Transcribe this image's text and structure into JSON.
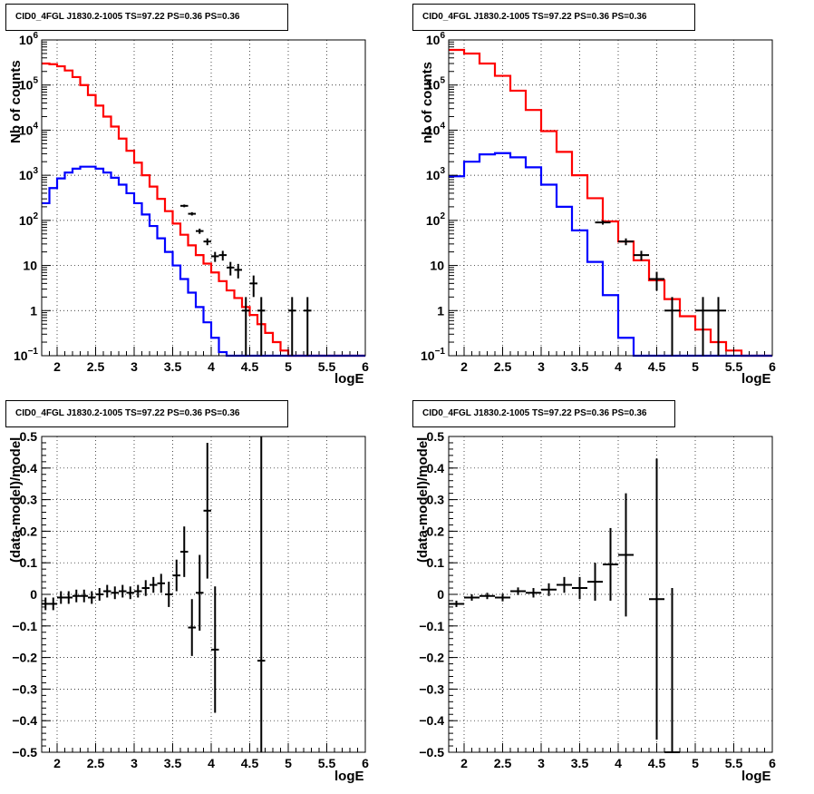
{
  "chart_data": [
    {
      "type": "line",
      "title": "CID0_4FGL J1830.2-1005 TS=97.22 PS=0.36 PS=0.36",
      "xlabel": "logE",
      "ylabel": "Nb of counts",
      "yscale": "log",
      "xlim": [
        1.8,
        6
      ],
      "ylim": [
        0.1,
        1000000
      ],
      "x_ticks": [
        "2",
        "2.5",
        "3",
        "3.5",
        "4",
        "4.5",
        "5",
        "5.5",
        "6"
      ],
      "y_ticks": [
        "10^-1",
        "1",
        "10",
        "10^2",
        "10^3",
        "10^4",
        "10^5",
        "10^6"
      ],
      "grid": true,
      "bin_edges": [
        1.8,
        1.9,
        2.0,
        2.1,
        2.2,
        2.3,
        2.4,
        2.5,
        2.6,
        2.7,
        2.8,
        2.9,
        3.0,
        3.1,
        3.2,
        3.3,
        3.4,
        3.5,
        3.6,
        3.7,
        3.8,
        3.9,
        4.0,
        4.1,
        4.2,
        4.3,
        4.4,
        4.5,
        4.6,
        4.7,
        4.8,
        4.9,
        5.0,
        5.1,
        5.2,
        5.3,
        5.4,
        5.5,
        5.6,
        5.7,
        5.8,
        5.9,
        6.0
      ],
      "series": [
        {
          "color": "#ff0000",
          "style": "histogram",
          "values": [
            300000,
            290000,
            260000,
            210000,
            150000,
            100000,
            60000,
            35000,
            20000,
            12000,
            6500,
            3500,
            1900,
            1000,
            560,
            300,
            160,
            85,
            48,
            28,
            17,
            11,
            7,
            4.5,
            2.8,
            1.9,
            1.2,
            0.8,
            0.5,
            0.32,
            0.2,
            0.13,
            0.1,
            0.1,
            0.1,
            0.1,
            0.1,
            0.1,
            0.1,
            0.1,
            0.1,
            0.1
          ]
        },
        {
          "color": "#0000ff",
          "style": "histogram",
          "values": [
            240,
            520,
            850,
            1150,
            1400,
            1550,
            1550,
            1400,
            1150,
            880,
            620,
            400,
            240,
            135,
            75,
            40,
            20,
            10,
            5,
            2.5,
            1.2,
            0.55,
            0.25,
            0.12,
            0.1,
            0.1,
            0.1,
            0.1,
            0.1,
            0.1,
            0.1,
            0.1,
            0.1,
            0.1,
            0.1,
            0.1,
            0.1,
            0.1,
            0.1,
            0.1,
            0.1,
            0.1
          ]
        },
        {
          "color": "#000000",
          "style": "points",
          "points": [
            {
              "x": 3.65,
              "y": 210,
              "xerr": 0.05
            },
            {
              "x": 3.75,
              "y": 140,
              "xerr": 0.05
            },
            {
              "x": 3.85,
              "y": 58,
              "xerr": 0.05
            },
            {
              "x": 3.95,
              "y": 34,
              "xerr": 0.05
            },
            {
              "x": 4.05,
              "y": 16,
              "xerr": 0.05
            },
            {
              "x": 4.15,
              "y": 17,
              "xerr": 0.05
            },
            {
              "x": 4.25,
              "y": 9,
              "xerr": 0.05
            },
            {
              "x": 4.35,
              "y": 8,
              "xerr": 0.05
            },
            {
              "x": 4.45,
              "y": 1,
              "xerr": 0.05
            },
            {
              "x": 4.55,
              "y": 4,
              "xerr": 0.05
            },
            {
              "x": 4.65,
              "y": 1,
              "xerr": 0.05
            },
            {
              "x": 5.05,
              "y": 1,
              "xerr": 0.05
            },
            {
              "x": 5.25,
              "y": 1,
              "xerr": 0.05
            }
          ]
        }
      ]
    },
    {
      "type": "line",
      "title": "CID0_4FGL J1830.2-1005 TS=97.22 PS=0.36 PS=0.36",
      "xlabel": "logE",
      "ylabel": "nb of counts",
      "yscale": "log",
      "xlim": [
        1.8,
        6
      ],
      "ylim": [
        0.1,
        1000000
      ],
      "x_ticks": [
        "2",
        "2.5",
        "3",
        "3.5",
        "4",
        "4.5",
        "5",
        "5.5",
        "6"
      ],
      "y_ticks": [
        "10^-1",
        "1",
        "10",
        "10^2",
        "10^3",
        "10^4",
        "10^5",
        "10^6"
      ],
      "grid": true,
      "bin_edges": [
        1.8,
        2.0,
        2.2,
        2.4,
        2.6,
        2.8,
        3.0,
        3.2,
        3.4,
        3.6,
        3.8,
        4.0,
        4.2,
        4.4,
        4.6,
        4.8,
        5.0,
        5.2,
        5.4,
        5.6,
        5.8,
        6.0
      ],
      "series": [
        {
          "color": "#ff0000",
          "style": "histogram",
          "values": [
            600000,
            500000,
            300000,
            160000,
            75000,
            28000,
            9500,
            3300,
            1000,
            310,
            95,
            34,
            13,
            4.7,
            1.8,
            0.75,
            0.38,
            0.2,
            0.13,
            0.1,
            0.1
          ]
        },
        {
          "color": "#0000ff",
          "style": "histogram",
          "values": [
            950,
            2000,
            2900,
            3100,
            2500,
            1500,
            620,
            200,
            60,
            12,
            2.2,
            0.25,
            0.1,
            0.1,
            0.1,
            0.1,
            0.1,
            0.1,
            0.1,
            0.1,
            0.1
          ]
        },
        {
          "color": "#000000",
          "style": "points",
          "points": [
            {
              "x": 3.8,
              "y": 90,
              "xerr": 0.1
            },
            {
              "x": 4.1,
              "y": 34,
              "xerr": 0.1
            },
            {
              "x": 4.3,
              "y": 17,
              "xerr": 0.1
            },
            {
              "x": 4.5,
              "y": 5,
              "xerr": 0.1
            },
            {
              "x": 4.7,
              "y": 1,
              "xerr": 0.1
            },
            {
              "x": 5.1,
              "y": 1,
              "xerr": 0.1
            },
            {
              "x": 5.3,
              "y": 1,
              "xerr": 0.1
            }
          ]
        }
      ]
    },
    {
      "type": "scatter",
      "title": "CID0_4FGL J1830.2-1005 TS=97.22 PS=0.36 PS=0.36",
      "xlabel": "logE",
      "ylabel": "(data-model)/model",
      "xlim": [
        1.8,
        6
      ],
      "ylim": [
        -0.5,
        0.5
      ],
      "x_ticks": [
        "2",
        "2.5",
        "3",
        "3.5",
        "4",
        "4.5",
        "5",
        "5.5",
        "6"
      ],
      "y_ticks": [
        "-0.5",
        "-0.4",
        "-0.3",
        "-0.2",
        "-0.1",
        "0",
        "0.1",
        "0.2",
        "0.3",
        "0.4",
        "0.5"
      ],
      "grid": true,
      "series": [
        {
          "color": "#000000",
          "style": "points",
          "points": [
            {
              "x": 1.85,
              "y": -0.03,
              "xerr": 0.05,
              "yerr": 0.02
            },
            {
              "x": 1.95,
              "y": -0.03,
              "xerr": 0.05,
              "yerr": 0.02
            },
            {
              "x": 2.05,
              "y": -0.01,
              "xerr": 0.05,
              "yerr": 0.02
            },
            {
              "x": 2.15,
              "y": -0.01,
              "xerr": 0.05,
              "yerr": 0.02
            },
            {
              "x": 2.25,
              "y": -0.005,
              "xerr": 0.05,
              "yerr": 0.02
            },
            {
              "x": 2.35,
              "y": -0.005,
              "xerr": 0.05,
              "yerr": 0.02
            },
            {
              "x": 2.45,
              "y": -0.01,
              "xerr": 0.05,
              "yerr": 0.02
            },
            {
              "x": 2.55,
              "y": 0,
              "xerr": 0.05,
              "yerr": 0.02
            },
            {
              "x": 2.65,
              "y": 0.01,
              "xerr": 0.05,
              "yerr": 0.02
            },
            {
              "x": 2.75,
              "y": 0.005,
              "xerr": 0.05,
              "yerr": 0.02
            },
            {
              "x": 2.85,
              "y": 0.01,
              "xerr": 0.05,
              "yerr": 0.02
            },
            {
              "x": 2.95,
              "y": 0.005,
              "xerr": 0.05,
              "yerr": 0.02
            },
            {
              "x": 3.05,
              "y": 0.01,
              "xerr": 0.05,
              "yerr": 0.02
            },
            {
              "x": 3.15,
              "y": 0.02,
              "xerr": 0.05,
              "yerr": 0.025
            },
            {
              "x": 3.25,
              "y": 0.03,
              "xerr": 0.05,
              "yerr": 0.025
            },
            {
              "x": 3.35,
              "y": 0.035,
              "xerr": 0.05,
              "yerr": 0.03
            },
            {
              "x": 3.45,
              "y": 0.0,
              "xerr": 0.05,
              "yerr": 0.04
            },
            {
              "x": 3.55,
              "y": 0.06,
              "xerr": 0.05,
              "yerr": 0.05
            },
            {
              "x": 3.65,
              "y": 0.135,
              "xerr": 0.05,
              "yerr": 0.08
            },
            {
              "x": 3.75,
              "y": -0.105,
              "xerr": 0.05,
              "yerr": 0.09
            },
            {
              "x": 3.85,
              "y": 0.005,
              "xerr": 0.05,
              "yerr": 0.12
            },
            {
              "x": 3.95,
              "y": 0.265,
              "xerr": 0.05,
              "yerr": 0.215
            },
            {
              "x": 4.05,
              "y": -0.175,
              "xerr": 0.05,
              "yerr": 0.2
            },
            {
              "x": 4.65,
              "y": -0.21,
              "xerr": 0.05,
              "yerr": 0.71
            }
          ]
        }
      ]
    },
    {
      "type": "scatter",
      "title": "CID0_4FGL J1830.2-1005 TS=97.22 PS=0.36 PS=0.36",
      "xlabel": "logE",
      "ylabel": "(data-model)/model",
      "xlim": [
        1.8,
        6
      ],
      "ylim": [
        -0.5,
        0.5
      ],
      "x_ticks": [
        "2",
        "2.5",
        "3",
        "3.5",
        "4",
        "4.5",
        "5",
        "5.5",
        "6"
      ],
      "y_ticks": [
        "-0.5",
        "-0.4",
        "-0.3",
        "-0.2",
        "-0.1",
        "0",
        "0.1",
        "0.2",
        "0.3",
        "0.4",
        "0.5"
      ],
      "grid": true,
      "series": [
        {
          "color": "#000000",
          "style": "points",
          "points": [
            {
              "x": 1.9,
              "y": -0.03,
              "xerr": 0.1,
              "yerr": 0.01
            },
            {
              "x": 2.1,
              "y": -0.01,
              "xerr": 0.1,
              "yerr": 0.01
            },
            {
              "x": 2.3,
              "y": -0.005,
              "xerr": 0.1,
              "yerr": 0.01
            },
            {
              "x": 2.5,
              "y": -0.01,
              "xerr": 0.1,
              "yerr": 0.012
            },
            {
              "x": 2.7,
              "y": 0.01,
              "xerr": 0.1,
              "yerr": 0.012
            },
            {
              "x": 2.9,
              "y": 0.005,
              "xerr": 0.1,
              "yerr": 0.015
            },
            {
              "x": 3.1,
              "y": 0.015,
              "xerr": 0.1,
              "yerr": 0.02
            },
            {
              "x": 3.3,
              "y": 0.03,
              "xerr": 0.1,
              "yerr": 0.025
            },
            {
              "x": 3.5,
              "y": 0.02,
              "xerr": 0.1,
              "yerr": 0.035
            },
            {
              "x": 3.7,
              "y": 0.04,
              "xerr": 0.1,
              "yerr": 0.06
            },
            {
              "x": 3.9,
              "y": 0.095,
              "xerr": 0.1,
              "yerr": 0.115
            },
            {
              "x": 4.1,
              "y": 0.125,
              "xerr": 0.1,
              "yerr": 0.195
            },
            {
              "x": 4.5,
              "y": -0.015,
              "xerr": 0.1,
              "yerr": 0.445
            },
            {
              "x": 4.7,
              "y": -0.5,
              "xerr": 0.1,
              "yerr": 0.52
            }
          ]
        }
      ]
    }
  ]
}
